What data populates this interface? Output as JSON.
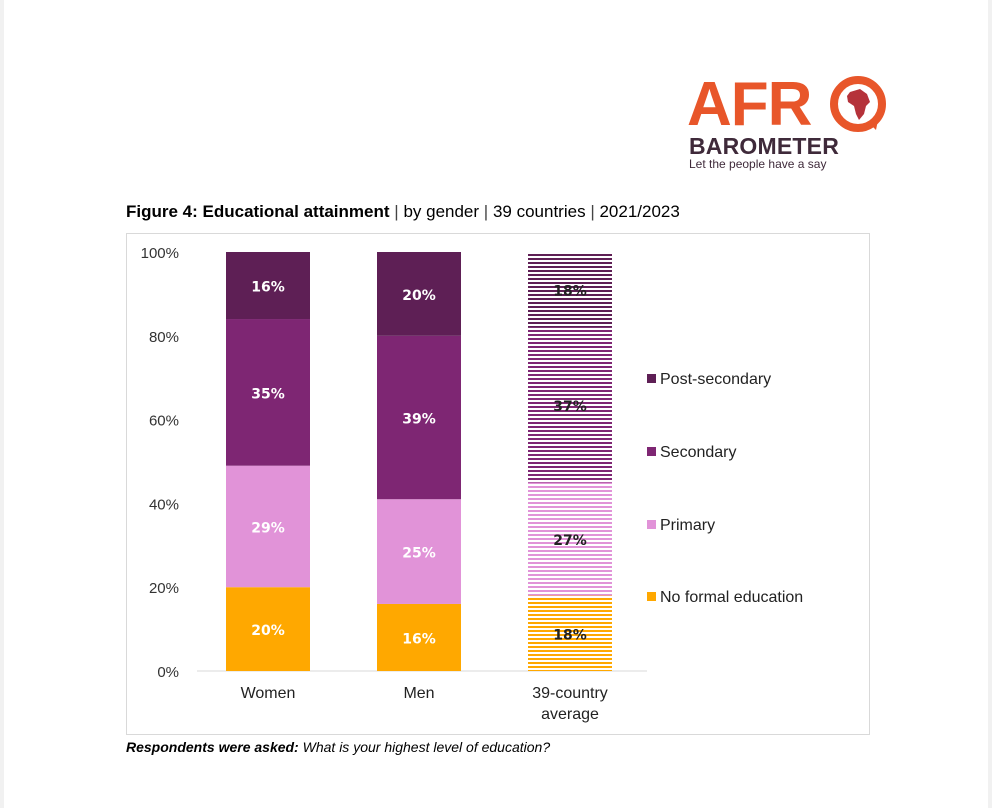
{
  "logo": {
    "brand_top": "AFR",
    "brand_bottom": "BAROMETER",
    "tagline": "Let the people have a say",
    "icon": "africa-globe-icon",
    "colors": {
      "orange": "#e8562a",
      "dark": "#3f2a3a"
    }
  },
  "figure": {
    "title_bold": "Figure 4: Educational attainment",
    "title_rest": "by gender",
    "title_part2": "39 countries",
    "title_part3": "2021/2023",
    "separator": "|"
  },
  "note": {
    "label": "Respondents were asked:",
    "question": "What is your highest level of education?"
  },
  "chart_data": {
    "type": "bar",
    "stacked": true,
    "orientation": "vertical",
    "title": "Figure 4: Educational attainment | by gender | 39 countries | 2021/2023",
    "xlabel": "",
    "ylabel": "",
    "ylim": [
      0,
      100
    ],
    "y_ticks": [
      "0%",
      "20%",
      "40%",
      "60%",
      "80%",
      "100%"
    ],
    "y_tick_values": [
      0,
      20,
      40,
      60,
      80,
      100
    ],
    "grid": false,
    "legend_position": "right",
    "categories": [
      "Women",
      "Men",
      "39-country average"
    ],
    "category_labels": [
      [
        "Women"
      ],
      [
        "Men"
      ],
      [
        "39-country",
        "average"
      ]
    ],
    "hatched_categories": [
      2
    ],
    "series": [
      {
        "name": "No formal education",
        "values": [
          20,
          16,
          18
        ],
        "color": "#ffa800"
      },
      {
        "name": "Primary",
        "values": [
          29,
          25,
          27
        ],
        "color": "#e193d8"
      },
      {
        "name": "Secondary",
        "values": [
          35,
          39,
          37
        ],
        "color": "#7e2673"
      },
      {
        "name": "Post-secondary",
        "values": [
          16,
          20,
          18
        ],
        "color": "#5e1f55"
      }
    ],
    "data_labels": [
      [
        "20%",
        "16%",
        "18%"
      ],
      [
        "29%",
        "25%",
        "27%"
      ],
      [
        "35%",
        "39%",
        "37%"
      ],
      [
        "16%",
        "20%",
        "18%"
      ]
    ],
    "legend_order": [
      "Post-secondary",
      "Secondary",
      "Primary",
      "No formal education"
    ]
  }
}
